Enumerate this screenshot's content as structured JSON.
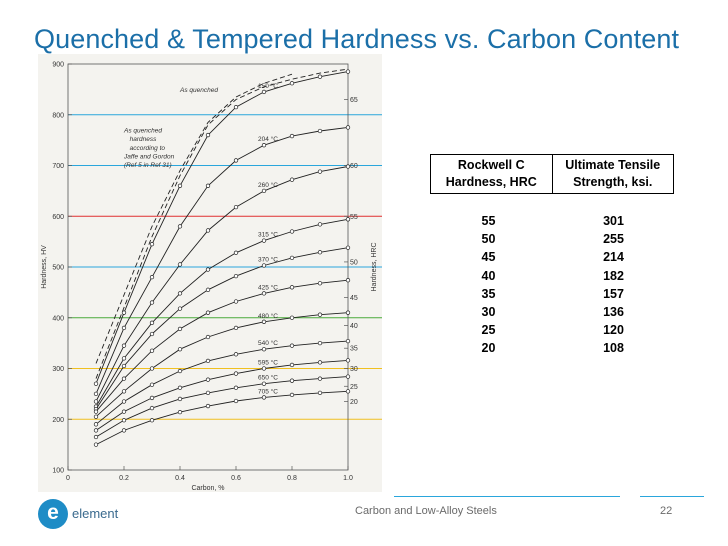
{
  "slide": {
    "title": "Quenched & Tempered Hardness vs. Carbon Content",
    "footer_text": "Carbon and Low-Alloy Steels",
    "page_number": "22",
    "brand": {
      "logo_letter": "e",
      "name": "element",
      "color": "#1e8cc6"
    },
    "accent": "#1b6fa8"
  },
  "table": {
    "headers": [
      "Rockwell C Hardness, HRC",
      "Ultimate Tensile Strength, ksi."
    ],
    "rows": [
      [
        "55",
        "301"
      ],
      [
        "50",
        "255"
      ],
      [
        "45",
        "214"
      ],
      [
        "40",
        "182"
      ],
      [
        "35",
        "157"
      ],
      [
        "30",
        "136"
      ],
      [
        "25",
        "120"
      ],
      [
        "20",
        "108"
      ]
    ]
  },
  "chart_data": {
    "type": "line",
    "title": "",
    "xlabel": "Carbon, %",
    "ylabel": "Hardness, HV",
    "y2label": "Hardness, HRC",
    "xlim": [
      0,
      1.0
    ],
    "ylim": [
      100,
      900
    ],
    "x_ticks": [
      0,
      0.2,
      0.4,
      0.6,
      0.8,
      1.0
    ],
    "x_tick_labels": [
      "0",
      "0.2",
      "0.4",
      "0.6",
      "0.8",
      "1.0"
    ],
    "y_ticks": [
      100,
      200,
      300,
      400,
      500,
      600,
      700,
      800,
      900
    ],
    "y_tick_labels": [
      "100",
      "200",
      "300",
      "400",
      "500",
      "600",
      "700",
      "800",
      "900"
    ],
    "hrc_ticks": [
      {
        "label": "65",
        "hv": 830
      },
      {
        "label": "60",
        "hv": 700
      },
      {
        "label": "55",
        "hv": 600
      },
      {
        "label": "50",
        "hv": 510
      },
      {
        "label": "45",
        "hv": 440
      },
      {
        "label": "40",
        "hv": 385
      },
      {
        "label": "35",
        "hv": 340
      },
      {
        "label": "30",
        "hv": 300
      },
      {
        "label": "25",
        "hv": 265
      },
      {
        "label": "20",
        "hv": 235
      }
    ],
    "highlight_lines": [
      {
        "hv": 200,
        "color": "#f0c020"
      },
      {
        "hv": 300,
        "color": "#f0c020"
      },
      {
        "hv": 400,
        "color": "#4aaa3a"
      },
      {
        "hv": 500,
        "color": "#2aa6dc"
      },
      {
        "hv": 600,
        "color": "#e03030"
      },
      {
        "hv": 700,
        "color": "#2aa6dc"
      },
      {
        "hv": 800,
        "color": "#2aa6dc"
      }
    ],
    "series": [
      {
        "name": "As quenched",
        "dashed": true,
        "x": [
          0.1,
          0.2,
          0.3,
          0.4,
          0.5,
          0.6,
          0.7,
          0.8,
          0.9,
          1.0
        ],
        "values": [
          280,
          420,
          560,
          680,
          780,
          830,
          855,
          870,
          882,
          890
        ]
      },
      {
        "name": "As quenched hardness according to Jaffe and Gordon (Ref 5 in Ref 31)",
        "dashed": true,
        "x": [
          0.1,
          0.2,
          0.3,
          0.4,
          0.5,
          0.6,
          0.7,
          0.8
        ],
        "values": [
          310,
          445,
          580,
          690,
          785,
          835,
          862,
          880
        ]
      },
      {
        "name": "150 °C",
        "x": [
          0.1,
          0.2,
          0.3,
          0.4,
          0.5,
          0.6,
          0.7,
          0.8,
          0.9,
          1.0
        ],
        "values": [
          270,
          410,
          545,
          660,
          760,
          815,
          845,
          862,
          875,
          885
        ]
      },
      {
        "name": "204 °C",
        "x": [
          0.1,
          0.2,
          0.3,
          0.4,
          0.5,
          0.6,
          0.7,
          0.8,
          0.9,
          1.0
        ],
        "values": [
          250,
          380,
          480,
          580,
          660,
          710,
          740,
          758,
          768,
          775
        ]
      },
      {
        "name": "260 °C",
        "x": [
          0.1,
          0.2,
          0.3,
          0.4,
          0.5,
          0.6,
          0.7,
          0.8,
          0.9,
          1.0
        ],
        "values": [
          235,
          345,
          430,
          505,
          572,
          618,
          650,
          672,
          688,
          698
        ]
      },
      {
        "name": "315 °C",
        "x": [
          0.1,
          0.2,
          0.3,
          0.4,
          0.5,
          0.6,
          0.7,
          0.8,
          0.9,
          1.0
        ],
        "values": [
          225,
          320,
          390,
          448,
          495,
          528,
          552,
          570,
          584,
          594
        ]
      },
      {
        "name": "370 °C",
        "x": [
          0.1,
          0.2,
          0.3,
          0.4,
          0.5,
          0.6,
          0.7,
          0.8,
          0.9,
          1.0
        ],
        "values": [
          220,
          305,
          368,
          418,
          455,
          482,
          503,
          518,
          529,
          538
        ]
      },
      {
        "name": "425 °C",
        "x": [
          0.1,
          0.2,
          0.3,
          0.4,
          0.5,
          0.6,
          0.7,
          0.8,
          0.9,
          1.0
        ],
        "values": [
          215,
          280,
          335,
          378,
          410,
          432,
          448,
          460,
          468,
          474
        ]
      },
      {
        "name": "480 °C",
        "x": [
          0.1,
          0.2,
          0.3,
          0.4,
          0.5,
          0.6,
          0.7,
          0.8,
          0.9,
          1.0
        ],
        "values": [
          205,
          255,
          300,
          338,
          362,
          380,
          392,
          400,
          406,
          410
        ]
      },
      {
        "name": "540 °C",
        "x": [
          0.1,
          0.2,
          0.3,
          0.4,
          0.5,
          0.6,
          0.7,
          0.8,
          0.9,
          1.0
        ],
        "values": [
          190,
          235,
          268,
          295,
          315,
          328,
          338,
          345,
          350,
          354
        ]
      },
      {
        "name": "595 °C",
        "x": [
          0.1,
          0.2,
          0.3,
          0.4,
          0.5,
          0.6,
          0.7,
          0.8,
          0.9,
          1.0
        ],
        "values": [
          178,
          215,
          242,
          262,
          278,
          290,
          300,
          307,
          312,
          316
        ]
      },
      {
        "name": "650 °C",
        "x": [
          0.1,
          0.2,
          0.3,
          0.4,
          0.5,
          0.6,
          0.7,
          0.8,
          0.9,
          1.0
        ],
        "values": [
          165,
          198,
          222,
          240,
          252,
          262,
          270,
          276,
          280,
          284
        ]
      },
      {
        "name": "705 °C",
        "x": [
          0.1,
          0.2,
          0.3,
          0.4,
          0.5,
          0.6,
          0.7,
          0.8,
          0.9,
          1.0
        ],
        "values": [
          150,
          178,
          198,
          214,
          226,
          236,
          243,
          248,
          252,
          255
        ]
      }
    ],
    "annotations": [
      {
        "text": "As quenched",
        "x": 0.4,
        "y": 845
      },
      {
        "text": "As quenched",
        "x": 0.2,
        "y": 765
      },
      {
        "text": "hardness",
        "x": 0.22,
        "y": 748
      },
      {
        "text": "according to",
        "x": 0.22,
        "y": 731
      },
      {
        "text": "Jaffe and Gordon",
        "x": 0.2,
        "y": 714
      },
      {
        "text": "(Ref 5 in Ref 31)",
        "x": 0.2,
        "y": 697
      }
    ],
    "grid": false
  }
}
